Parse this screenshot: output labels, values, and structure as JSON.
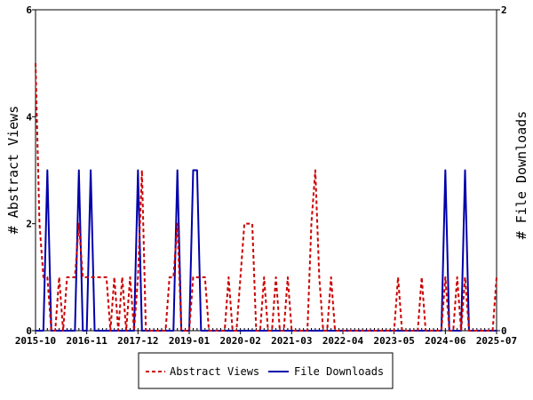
{
  "chart_data": {
    "type": "line",
    "left_axis": {
      "label": "# Abstract Views",
      "range": [
        0,
        6
      ],
      "ticks": [
        "0",
        "2",
        "4",
        "6"
      ]
    },
    "right_axis": {
      "label": "# File Downloads",
      "range": [
        0,
        2
      ],
      "ticks": [
        "0",
        "2"
      ]
    },
    "x_ticks": [
      "2015-10",
      "2016-11",
      "2017-12",
      "2019-01",
      "2020-02",
      "2021-03",
      "2022-04",
      "2023-05",
      "2024-06",
      "2025-07"
    ],
    "legend_placement": "bottom-center",
    "series": [
      {
        "name": "Abstract Views",
        "axis": "left",
        "color": "#cc0000",
        "style": "dashed",
        "points": [
          [
            "2015-10",
            5
          ],
          [
            "2015-11",
            2
          ],
          [
            "2015-12",
            1
          ],
          [
            "2016-01",
            1
          ],
          [
            "2016-02",
            0
          ],
          [
            "2016-03",
            0
          ],
          [
            "2016-04",
            1
          ],
          [
            "2016-05",
            0
          ],
          [
            "2016-06",
            1
          ],
          [
            "2016-07",
            1
          ],
          [
            "2016-08",
            1
          ],
          [
            "2016-09",
            2
          ],
          [
            "2016-10",
            1
          ],
          [
            "2016-11",
            1
          ],
          [
            "2016-12",
            1
          ],
          [
            "2017-01",
            1
          ],
          [
            "2017-02",
            1
          ],
          [
            "2017-03",
            1
          ],
          [
            "2017-04",
            1
          ],
          [
            "2017-05",
            0
          ],
          [
            "2017-06",
            1
          ],
          [
            "2017-07",
            0
          ],
          [
            "2017-08",
            1
          ],
          [
            "2017-09",
            0
          ],
          [
            "2017-10",
            1
          ],
          [
            "2017-11",
            0
          ],
          [
            "2017-12",
            1
          ],
          [
            "2018-01",
            3
          ],
          [
            "2018-02",
            0
          ],
          [
            "2018-03",
            0
          ],
          [
            "2018-04",
            0
          ],
          [
            "2018-05",
            0
          ],
          [
            "2018-06",
            0
          ],
          [
            "2018-07",
            0
          ],
          [
            "2018-08",
            1
          ],
          [
            "2018-09",
            1
          ],
          [
            "2018-10",
            2
          ],
          [
            "2018-11",
            0
          ],
          [
            "2018-12",
            0
          ],
          [
            "2019-01",
            0
          ],
          [
            "2019-02",
            1
          ],
          [
            "2019-03",
            1
          ],
          [
            "2019-04",
            1
          ],
          [
            "2019-05",
            1
          ],
          [
            "2019-06",
            0
          ],
          [
            "2019-07",
            0
          ],
          [
            "2019-08",
            0
          ],
          [
            "2019-09",
            0
          ],
          [
            "2019-10",
            0
          ],
          [
            "2019-11",
            1
          ],
          [
            "2019-12",
            0
          ],
          [
            "2020-01",
            0
          ],
          [
            "2020-02",
            1
          ],
          [
            "2020-03",
            2
          ],
          [
            "2020-04",
            2
          ],
          [
            "2020-05",
            2
          ],
          [
            "2020-06",
            0
          ],
          [
            "2020-07",
            0
          ],
          [
            "2020-08",
            1
          ],
          [
            "2020-09",
            0
          ],
          [
            "2020-10",
            0
          ],
          [
            "2020-11",
            1
          ],
          [
            "2020-12",
            0
          ],
          [
            "2021-01",
            0
          ],
          [
            "2021-02",
            1
          ],
          [
            "2021-03",
            0
          ],
          [
            "2021-04",
            0
          ],
          [
            "2021-05",
            0
          ],
          [
            "2021-06",
            0
          ],
          [
            "2021-07",
            0
          ],
          [
            "2021-08",
            2
          ],
          [
            "2021-09",
            3
          ],
          [
            "2021-10",
            1
          ],
          [
            "2021-11",
            0
          ],
          [
            "2021-12",
            0
          ],
          [
            "2022-01",
            1
          ],
          [
            "2022-02",
            0
          ],
          [
            "2022-03",
            0
          ],
          [
            "2022-04",
            0
          ],
          [
            "2022-05",
            0
          ],
          [
            "2022-06",
            0
          ],
          [
            "2022-07",
            0
          ],
          [
            "2022-08",
            0
          ],
          [
            "2022-09",
            0
          ],
          [
            "2022-10",
            0
          ],
          [
            "2022-11",
            0
          ],
          [
            "2022-12",
            0
          ],
          [
            "2023-01",
            0
          ],
          [
            "2023-02",
            0
          ],
          [
            "2023-03",
            0
          ],
          [
            "2023-04",
            0
          ],
          [
            "2023-05",
            0
          ],
          [
            "2023-06",
            1
          ],
          [
            "2023-07",
            0
          ],
          [
            "2023-08",
            0
          ],
          [
            "2023-09",
            0
          ],
          [
            "2023-10",
            0
          ],
          [
            "2023-11",
            0
          ],
          [
            "2023-12",
            1
          ],
          [
            "2024-01",
            0
          ],
          [
            "2024-02",
            0
          ],
          [
            "2024-03",
            0
          ],
          [
            "2024-04",
            0
          ],
          [
            "2024-05",
            0
          ],
          [
            "2024-06",
            1
          ],
          [
            "2024-07",
            0
          ],
          [
            "2024-08",
            0
          ],
          [
            "2024-09",
            1
          ],
          [
            "2024-10",
            0
          ],
          [
            "2024-11",
            1
          ],
          [
            "2024-12",
            0
          ],
          [
            "2025-01",
            0
          ],
          [
            "2025-02",
            0
          ],
          [
            "2025-03",
            0
          ],
          [
            "2025-04",
            0
          ],
          [
            "2025-05",
            0
          ],
          [
            "2025-06",
            0
          ],
          [
            "2025-07",
            1
          ]
        ]
      },
      {
        "name": "File Downloads",
        "axis": "right",
        "color": "#0000aa",
        "style": "solid",
        "points": [
          [
            "2015-10",
            0
          ],
          [
            "2015-11",
            0
          ],
          [
            "2015-12",
            0
          ],
          [
            "2016-01",
            1
          ],
          [
            "2016-02",
            0
          ],
          [
            "2016-03",
            0
          ],
          [
            "2016-04",
            0
          ],
          [
            "2016-05",
            0
          ],
          [
            "2016-06",
            0
          ],
          [
            "2016-07",
            0
          ],
          [
            "2016-08",
            0
          ],
          [
            "2016-09",
            1
          ],
          [
            "2016-10",
            0
          ],
          [
            "2016-11",
            0
          ],
          [
            "2016-12",
            1
          ],
          [
            "2017-01",
            0
          ],
          [
            "2017-02",
            0
          ],
          [
            "2017-03",
            0
          ],
          [
            "2017-04",
            0
          ],
          [
            "2017-05",
            0
          ],
          [
            "2017-06",
            0
          ],
          [
            "2017-07",
            0
          ],
          [
            "2017-08",
            0
          ],
          [
            "2017-09",
            0
          ],
          [
            "2017-10",
            0
          ],
          [
            "2017-11",
            0
          ],
          [
            "2017-12",
            1
          ],
          [
            "2018-01",
            0
          ],
          [
            "2018-02",
            0
          ],
          [
            "2018-03",
            0
          ],
          [
            "2018-04",
            0
          ],
          [
            "2018-05",
            0
          ],
          [
            "2018-06",
            0
          ],
          [
            "2018-07",
            0
          ],
          [
            "2018-08",
            0
          ],
          [
            "2018-09",
            0
          ],
          [
            "2018-10",
            1
          ],
          [
            "2018-11",
            0
          ],
          [
            "2018-12",
            0
          ],
          [
            "2019-01",
            0
          ],
          [
            "2019-02",
            1
          ],
          [
            "2019-03",
            1
          ],
          [
            "2019-04",
            0
          ],
          [
            "2019-05",
            0
          ],
          [
            "2019-06",
            0
          ],
          [
            "2019-07",
            0
          ],
          [
            "2019-08",
            0
          ],
          [
            "2019-09",
            0
          ],
          [
            "2019-10",
            0
          ],
          [
            "2019-11",
            0
          ],
          [
            "2019-12",
            0
          ],
          [
            "2020-01",
            0
          ],
          [
            "2020-02",
            0
          ],
          [
            "2020-03",
            0
          ],
          [
            "2020-04",
            0
          ],
          [
            "2020-05",
            0
          ],
          [
            "2020-06",
            0
          ],
          [
            "2020-07",
            0
          ],
          [
            "2020-08",
            0
          ],
          [
            "2020-09",
            0
          ],
          [
            "2020-10",
            0
          ],
          [
            "2020-11",
            0
          ],
          [
            "2020-12",
            0
          ],
          [
            "2021-01",
            0
          ],
          [
            "2021-02",
            0
          ],
          [
            "2021-03",
            0
          ],
          [
            "2021-04",
            0
          ],
          [
            "2021-05",
            0
          ],
          [
            "2021-06",
            0
          ],
          [
            "2021-07",
            0
          ],
          [
            "2021-08",
            0
          ],
          [
            "2021-09",
            0
          ],
          [
            "2021-10",
            0
          ],
          [
            "2021-11",
            0
          ],
          [
            "2021-12",
            0
          ],
          [
            "2022-01",
            0
          ],
          [
            "2022-02",
            0
          ],
          [
            "2022-03",
            0
          ],
          [
            "2022-04",
            0
          ],
          [
            "2022-05",
            0
          ],
          [
            "2022-06",
            0
          ],
          [
            "2022-07",
            0
          ],
          [
            "2022-08",
            0
          ],
          [
            "2022-09",
            0
          ],
          [
            "2022-10",
            0
          ],
          [
            "2022-11",
            0
          ],
          [
            "2022-12",
            0
          ],
          [
            "2023-01",
            0
          ],
          [
            "2023-02",
            0
          ],
          [
            "2023-03",
            0
          ],
          [
            "2023-04",
            0
          ],
          [
            "2023-05",
            0
          ],
          [
            "2023-06",
            0
          ],
          [
            "2023-07",
            0
          ],
          [
            "2023-08",
            0
          ],
          [
            "2023-09",
            0
          ],
          [
            "2023-10",
            0
          ],
          [
            "2023-11",
            0
          ],
          [
            "2023-12",
            0
          ],
          [
            "2024-01",
            0
          ],
          [
            "2024-02",
            0
          ],
          [
            "2024-03",
            0
          ],
          [
            "2024-04",
            0
          ],
          [
            "2024-05",
            0
          ],
          [
            "2024-06",
            1
          ],
          [
            "2024-07",
            0
          ],
          [
            "2024-08",
            0
          ],
          [
            "2024-09",
            0
          ],
          [
            "2024-10",
            0
          ],
          [
            "2024-11",
            1
          ],
          [
            "2024-12",
            0
          ],
          [
            "2025-01",
            0
          ],
          [
            "2025-02",
            0
          ],
          [
            "2025-03",
            0
          ],
          [
            "2025-04",
            0
          ],
          [
            "2025-05",
            0
          ],
          [
            "2025-06",
            0
          ],
          [
            "2025-07",
            0
          ]
        ]
      }
    ]
  }
}
